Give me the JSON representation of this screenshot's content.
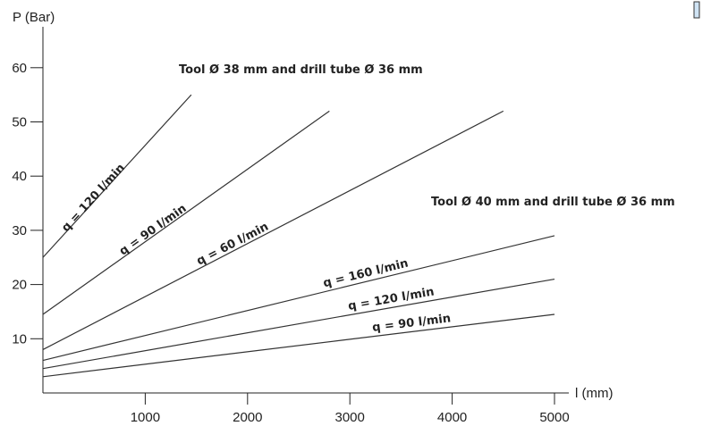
{
  "chart_data": {
    "type": "line",
    "xlabel": "l (mm)",
    "ylabel": "P (Bar)",
    "xlim": [
      0,
      5000
    ],
    "ylim": [
      0,
      65
    ],
    "xticks": [
      1000,
      2000,
      3000,
      4000,
      5000
    ],
    "yticks": [
      10,
      20,
      30,
      40,
      50,
      60
    ],
    "xtick_labels": [
      "1000",
      "2000",
      "3000",
      "4000",
      "5000"
    ],
    "ytick_labels": [
      "10",
      "20",
      "30",
      "40",
      "50",
      "60"
    ],
    "grid": false,
    "groups": [
      {
        "title": "Tool Ø 38 mm and drill tube Ø 36 mm"
      },
      {
        "title": "Tool Ø 40 mm and drill tube Ø 36 mm"
      }
    ],
    "series": [
      {
        "name": "q = 120 l/min",
        "group": 0,
        "x": [
          0,
          1450
        ],
        "y": [
          25,
          55
        ]
      },
      {
        "name": "q = 90 l/min",
        "group": 0,
        "x": [
          0,
          2800
        ],
        "y": [
          14.5,
          52
        ]
      },
      {
        "name": "q = 60 l/min",
        "group": 0,
        "x": [
          0,
          4500
        ],
        "y": [
          8,
          52
        ]
      },
      {
        "name": "q = 160 l/min",
        "group": 1,
        "x": [
          0,
          5000
        ],
        "y": [
          6,
          29
        ]
      },
      {
        "name": "q = 120 l/min",
        "group": 1,
        "x": [
          0,
          5000
        ],
        "y": [
          4.5,
          21
        ]
      },
      {
        "name": "q = 90 l/min",
        "group": 1,
        "x": [
          0,
          5000
        ],
        "y": [
          3,
          14.5
        ]
      }
    ]
  }
}
